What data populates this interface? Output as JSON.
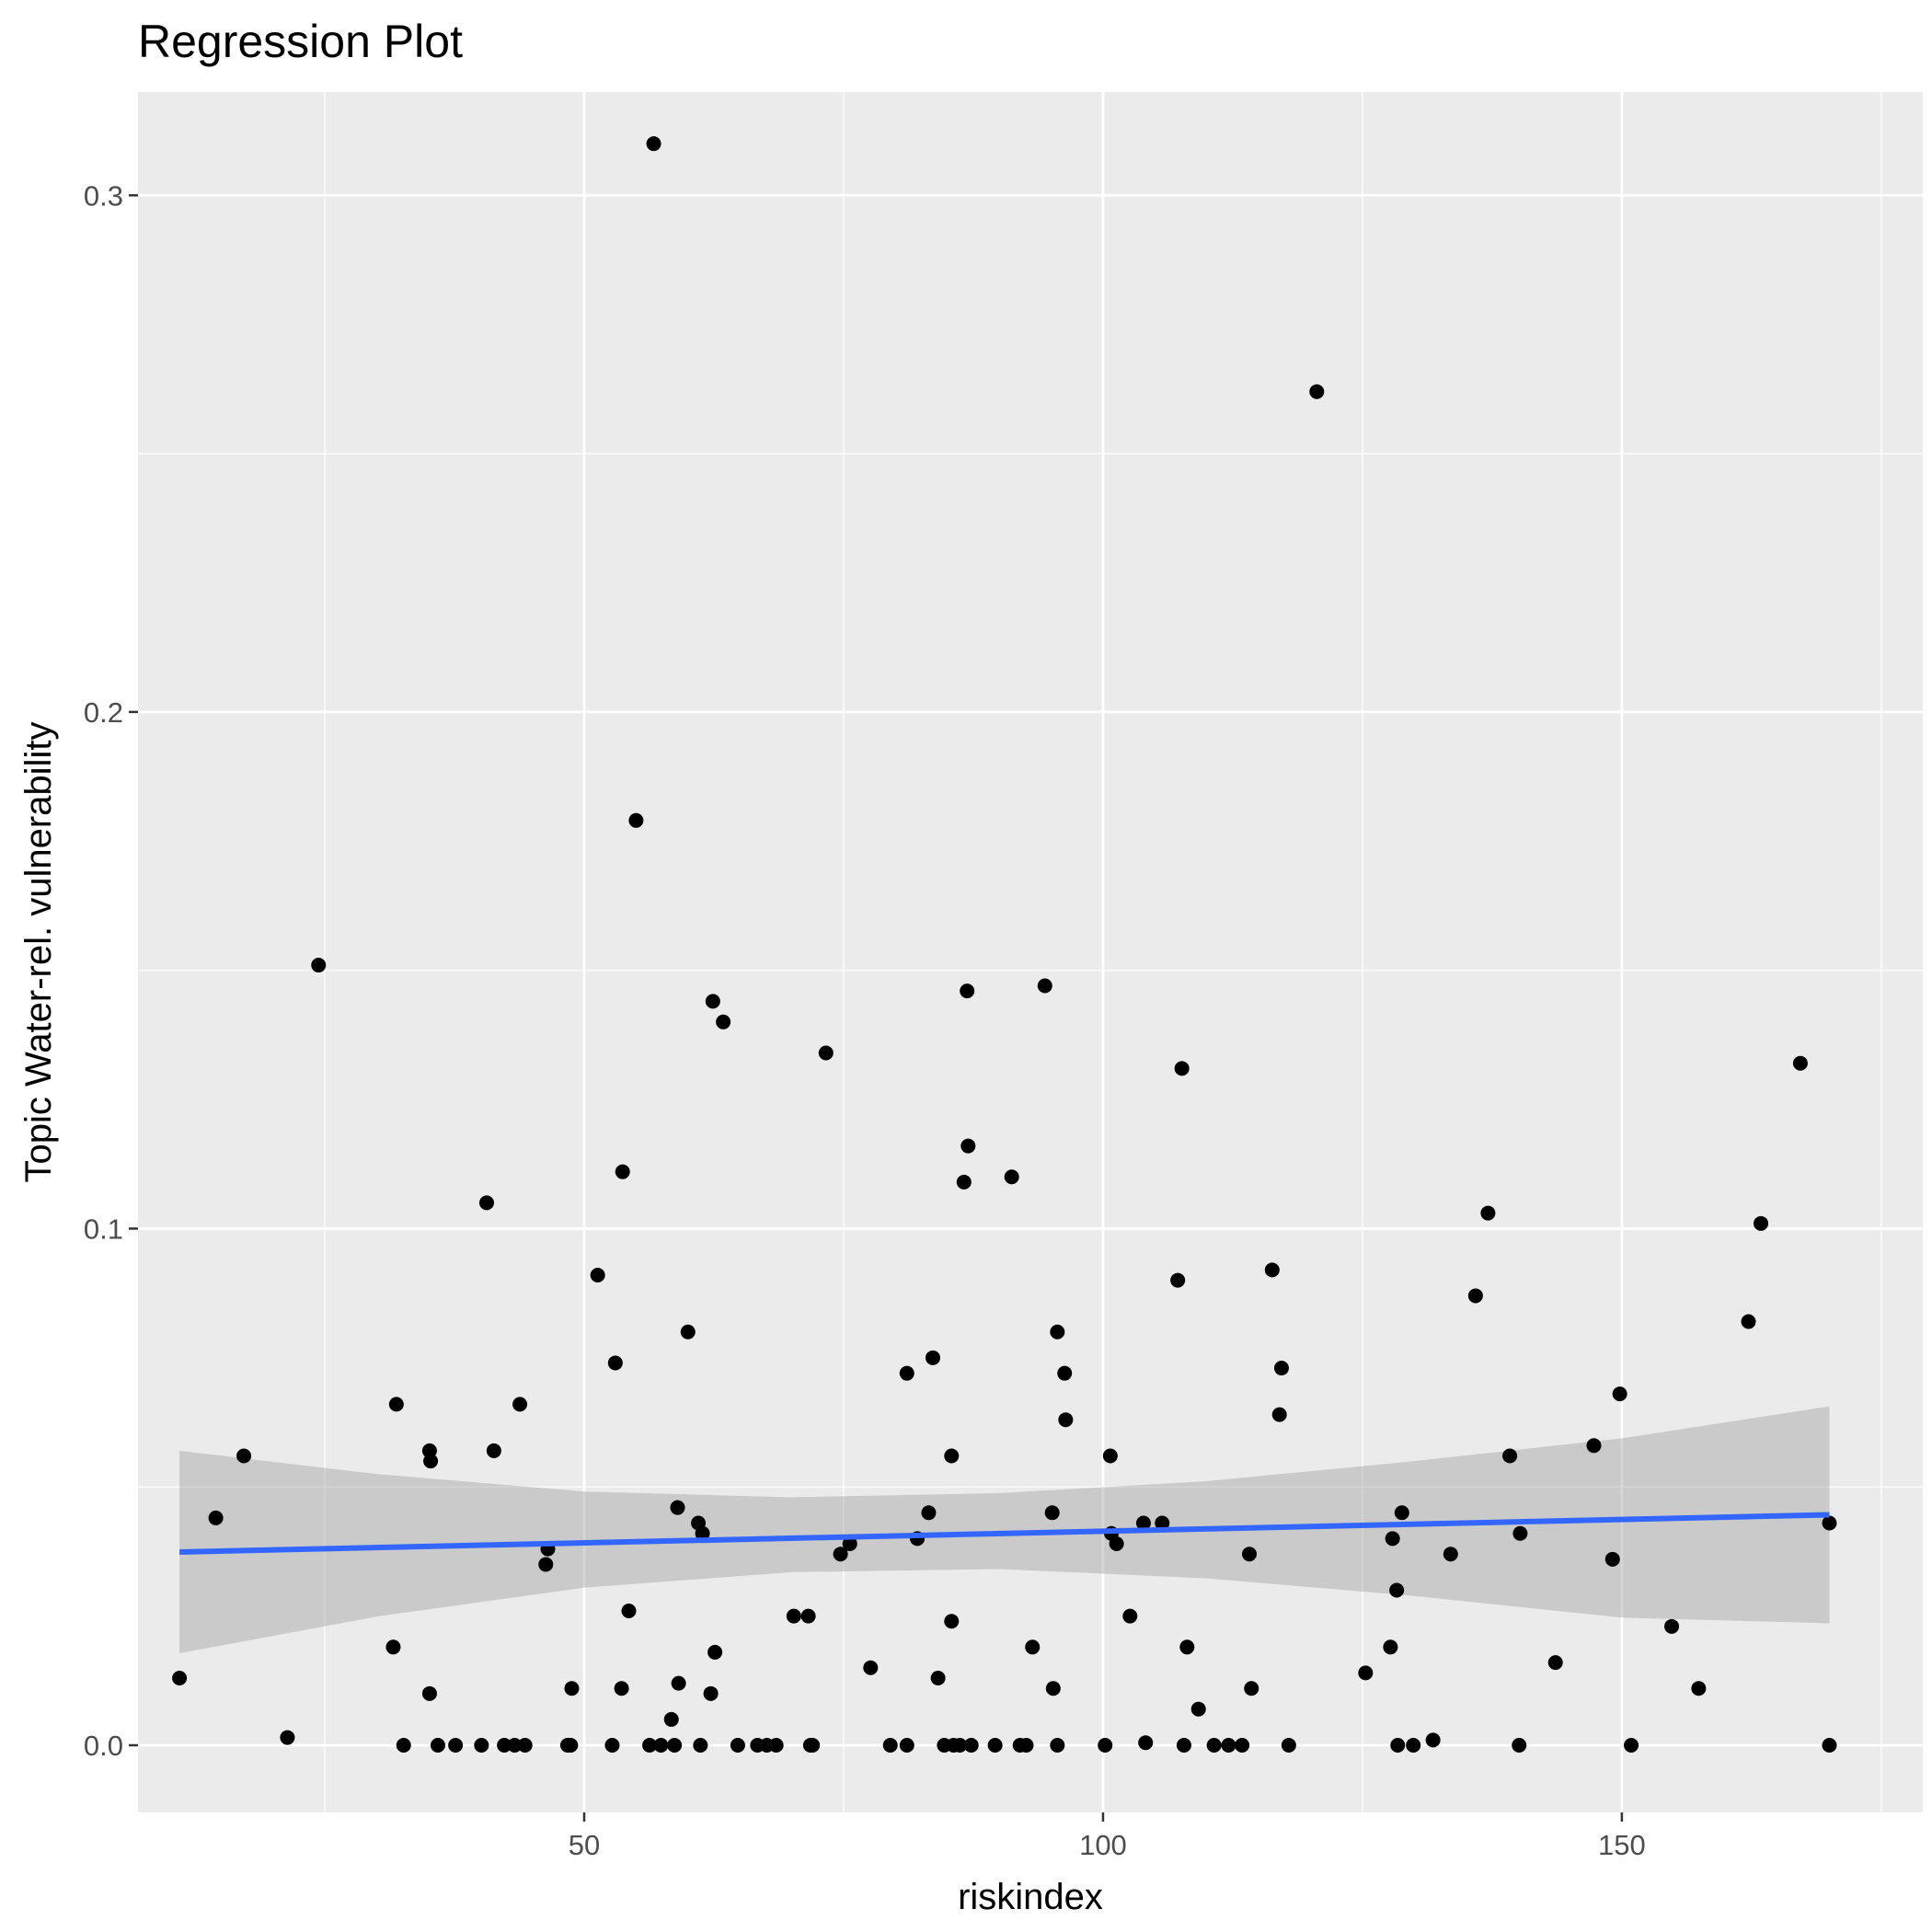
{
  "chart_data": {
    "type": "scatter",
    "title": "Regression Plot",
    "xlabel": "riskindex",
    "ylabel": "Topic Water-rel. vulnerability",
    "xlim": [
      7,
      179
    ],
    "ylim": [
      -0.013,
      0.32
    ],
    "x_ticks": [
      50,
      100,
      150
    ],
    "x_tick_labels": [
      "50",
      "100",
      "150"
    ],
    "y_ticks": [
      0.0,
      0.1,
      0.2,
      0.3
    ],
    "y_tick_labels": [
      "0.0",
      "0.1",
      "0.2",
      "0.3"
    ],
    "grid": true,
    "legend": "none",
    "colors": {
      "panel": "#ebebeb",
      "grid": "#ffffff",
      "points": "#000000",
      "regression_line": "#3366ff",
      "confidence_band": "#999999"
    },
    "regression": {
      "method": "lm",
      "line": {
        "x": [
          11,
          170
        ],
        "y": [
          0.0374,
          0.0446
        ]
      },
      "band": {
        "x": [
          11,
          30,
          50,
          70,
          90,
          110,
          130,
          150,
          170
        ],
        "lower": [
          0.0178,
          0.0249,
          0.0305,
          0.0335,
          0.0341,
          0.0323,
          0.0289,
          0.0247,
          0.0236
        ],
        "upper": [
          0.057,
          0.0525,
          0.0491,
          0.048,
          0.0488,
          0.0511,
          0.055,
          0.0594,
          0.0656
        ]
      }
    },
    "points": [
      [
        11,
        0.013
      ],
      [
        14.5,
        0.044
      ],
      [
        17.2,
        0.056
      ],
      [
        21.4,
        0.0015
      ],
      [
        24.4,
        0.151
      ],
      [
        31.6,
        0.019
      ],
      [
        31.9,
        0.066
      ],
      [
        32.6,
        0.0
      ],
      [
        35.1,
        0.057
      ],
      [
        35.2,
        0.055
      ],
      [
        35.1,
        0.01
      ],
      [
        35.9,
        0.0
      ],
      [
        37.6,
        0.0
      ],
      [
        40.1,
        0.0
      ],
      [
        40.6,
        0.105
      ],
      [
        41.3,
        0.057
      ],
      [
        42.3,
        0.0
      ],
      [
        43.3,
        0.0
      ],
      [
        43.8,
        0.066
      ],
      [
        44.3,
        0.0
      ],
      [
        46.3,
        0.035
      ],
      [
        46.5,
        0.038
      ],
      [
        48.4,
        0.0
      ],
      [
        48.7,
        0.0
      ],
      [
        48.8,
        0.011
      ],
      [
        51.3,
        0.091
      ],
      [
        52.7,
        0.0
      ],
      [
        53.0,
        0.074
      ],
      [
        53.6,
        0.011
      ],
      [
        53.7,
        0.111
      ],
      [
        54.3,
        0.026
      ],
      [
        55.0,
        0.179
      ],
      [
        56.3,
        0.0
      ],
      [
        56.7,
        0.31
      ],
      [
        57.4,
        0.0
      ],
      [
        58.7,
        0.0
      ],
      [
        58.4,
        0.005
      ],
      [
        59.0,
        0.046
      ],
      [
        59.1,
        0.012
      ],
      [
        60.0,
        0.08
      ],
      [
        61.0,
        0.043
      ],
      [
        61.2,
        0.0
      ],
      [
        61.4,
        0.041
      ],
      [
        62.2,
        0.01
      ],
      [
        62.4,
        0.144
      ],
      [
        62.6,
        0.018
      ],
      [
        63.4,
        0.14
      ],
      [
        64.8,
        0.0
      ],
      [
        66.7,
        0.0
      ],
      [
        67.6,
        0.0
      ],
      [
        68.5,
        0.0
      ],
      [
        70.2,
        0.025
      ],
      [
        71.6,
        0.025
      ],
      [
        71.8,
        0.0
      ],
      [
        72.0,
        0.0
      ],
      [
        73.3,
        0.134
      ],
      [
        74.7,
        0.037
      ],
      [
        75.6,
        0.039
      ],
      [
        77.6,
        0.015
      ],
      [
        79.5,
        0.0
      ],
      [
        81.1,
        0.072
      ],
      [
        81.1,
        0.0
      ],
      [
        82.1,
        0.04
      ],
      [
        83.2,
        0.045
      ],
      [
        83.6,
        0.075
      ],
      [
        84.1,
        0.013
      ],
      [
        84.7,
        0.0
      ],
      [
        85.4,
        0.056
      ],
      [
        85.4,
        0.024
      ],
      [
        85.6,
        0.0
      ],
      [
        86.2,
        0.0
      ],
      [
        86.6,
        0.109
      ],
      [
        86.9,
        0.146
      ],
      [
        87.0,
        0.116
      ],
      [
        87.3,
        0.0
      ],
      [
        89.6,
        0.0
      ],
      [
        91.2,
        0.11
      ],
      [
        92.0,
        0.0
      ],
      [
        92.6,
        0.0
      ],
      [
        93.2,
        0.019
      ],
      [
        94.4,
        0.147
      ],
      [
        95.1,
        0.045
      ],
      [
        95.2,
        0.011
      ],
      [
        95.6,
        0.08
      ],
      [
        95.6,
        0.0
      ],
      [
        96.3,
        0.072
      ],
      [
        96.4,
        0.063
      ],
      [
        100.2,
        0.0
      ],
      [
        100.7,
        0.056
      ],
      [
        100.8,
        0.041
      ],
      [
        101.3,
        0.039
      ],
      [
        102.6,
        0.025
      ],
      [
        103.9,
        0.043
      ],
      [
        104.1,
        0.0005
      ],
      [
        105.7,
        0.043
      ],
      [
        107.2,
        0.09
      ],
      [
        107.6,
        0.131
      ],
      [
        107.8,
        0.0
      ],
      [
        108.1,
        0.019
      ],
      [
        109.2,
        0.007
      ],
      [
        110.7,
        0.0
      ],
      [
        112.1,
        0.0
      ],
      [
        113.4,
        0.0
      ],
      [
        114.1,
        0.037
      ],
      [
        114.3,
        0.011
      ],
      [
        116.3,
        0.092
      ],
      [
        117.0,
        0.064
      ],
      [
        117.2,
        0.073
      ],
      [
        117.9,
        0.0
      ],
      [
        120.6,
        0.262
      ],
      [
        125.3,
        0.014
      ],
      [
        127.7,
        0.019
      ],
      [
        127.9,
        0.04
      ],
      [
        128.3,
        0.03
      ],
      [
        128.4,
        0.0
      ],
      [
        128.8,
        0.045
      ],
      [
        129.9,
        0.0
      ],
      [
        131.8,
        0.001
      ],
      [
        133.5,
        0.037
      ],
      [
        135.9,
        0.087
      ],
      [
        137.1,
        0.103
      ],
      [
        139.2,
        0.056
      ],
      [
        140.1,
        0.0
      ],
      [
        140.2,
        0.041
      ],
      [
        143.6,
        0.016
      ],
      [
        147.3,
        0.058
      ],
      [
        149.1,
        0.036
      ],
      [
        149.8,
        0.068
      ],
      [
        150.9,
        0.0
      ],
      [
        154.8,
        0.023
      ],
      [
        157.4,
        0.011
      ],
      [
        162.2,
        0.082
      ],
      [
        163.4,
        0.101
      ],
      [
        167.2,
        0.132
      ],
      [
        170.0,
        0.0
      ],
      [
        170.0,
        0.043
      ]
    ]
  }
}
